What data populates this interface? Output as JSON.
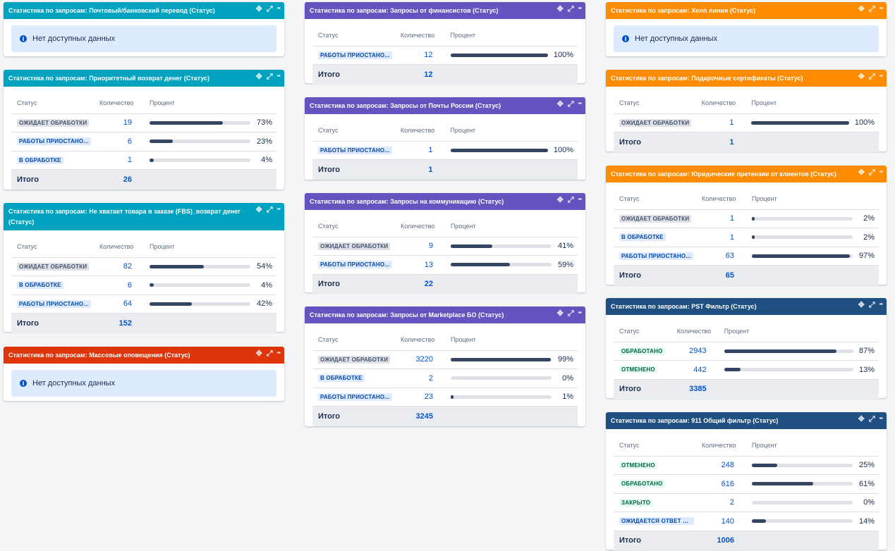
{
  "common": {
    "col_status": "Статус",
    "col_count": "Количество",
    "col_percent": "Процент",
    "total_label": "Итого",
    "no_data": "Нет доступных данных"
  },
  "gadgets": [
    {
      "id": "g1",
      "title": "Статистика по запросам: Почтовый/банковский перевод (Статус)",
      "color": "#00a3bf",
      "nodata": true
    },
    {
      "id": "g2",
      "title": "Статистика по запросам: Приоритетный возврат денег (Статус)",
      "color": "#00a3bf",
      "rows": [
        {
          "status": "ОЖИДАЕТ ОБРАБОТКИ",
          "style": "grey",
          "count": "19",
          "pct": "73%",
          "fill": 0.73
        },
        {
          "status": "РАБОТЫ ПРИОСТАНО...",
          "style": "blue",
          "count": "6",
          "pct": "23%",
          "fill": 0.23
        },
        {
          "status": "В ОБРАБОТКЕ",
          "style": "blue",
          "count": "1",
          "pct": "4%",
          "fill": 0.04
        }
      ],
      "total": "26"
    },
    {
      "id": "g3",
      "title": "Статистика по запросам: Не хватает товара в заказе (FBS)_возврат денег (Статус)",
      "color": "#00a3bf",
      "rows": [
        {
          "status": "ОЖИДАЕТ ОБРАБОТКИ",
          "style": "grey",
          "count": "82",
          "pct": "54%",
          "fill": 0.54
        },
        {
          "status": "В ОБРАБОТКЕ",
          "style": "blue",
          "count": "6",
          "pct": "4%",
          "fill": 0.04
        },
        {
          "status": "РАБОТЫ ПРИОСТАНО...",
          "style": "blue",
          "count": "64",
          "pct": "42%",
          "fill": 0.42
        }
      ],
      "total": "152"
    },
    {
      "id": "g4",
      "title": "Статистика по запросам: Массовые оповещения (Статус)",
      "color": "#de350b",
      "nodata": true
    },
    {
      "id": "g5",
      "title": "Статистика по запросам: Запросы от финансистов (Статус)",
      "color": "#6554c0",
      "rows": [
        {
          "status": "РАБОТЫ ПРИОСТАНО...",
          "style": "blue",
          "count": "12",
          "pct": "100%",
          "fill": 1.0
        }
      ],
      "total": "12"
    },
    {
      "id": "g6",
      "title": "Статистика по запросам: Запросы от Почты России (Статус)",
      "color": "#6554c0",
      "rows": [
        {
          "status": "РАБОТЫ ПРИОСТАНО...",
          "style": "blue",
          "count": "1",
          "pct": "100%",
          "fill": 1.0
        }
      ],
      "total": "1"
    },
    {
      "id": "g7",
      "title": "Статистика по запросам: Запросы на коммуникацию (Статус)",
      "color": "#6554c0",
      "rows": [
        {
          "status": "ОЖИДАЕТ ОБРАБОТКИ",
          "style": "grey",
          "count": "9",
          "pct": "41%",
          "fill": 0.41
        },
        {
          "status": "РАБОТЫ ПРИОСТАНО...",
          "style": "blue",
          "count": "13",
          "pct": "59%",
          "fill": 0.59
        }
      ],
      "total": "22"
    },
    {
      "id": "g8",
      "title": "Статистика по запросам: Запросы от Marketplace БО (Статус)",
      "color": "#6554c0",
      "rows": [
        {
          "status": "ОЖИДАЕТ ОБРАБОТКИ",
          "style": "grey",
          "count": "3220",
          "pct": "99%",
          "fill": 0.99
        },
        {
          "status": "В ОБРАБОТКЕ",
          "style": "blue",
          "count": "2",
          "pct": "0%",
          "fill": 0.0
        },
        {
          "status": "РАБОТЫ ПРИОСТАНО...",
          "style": "blue",
          "count": "23",
          "pct": "1%",
          "fill": 0.01
        }
      ],
      "total": "3245"
    },
    {
      "id": "g9",
      "title": "Статистика по запросам: Хелп линия (Статус)",
      "color": "#ff8b00",
      "nodata": true
    },
    {
      "id": "g10",
      "title": "Статистика по запросам: Подарочные сертификаты (Статус)",
      "color": "#ff8b00",
      "rows": [
        {
          "status": "ОЖИДАЕТ ОБРАБОТКИ",
          "style": "grey",
          "count": "1",
          "pct": "100%",
          "fill": 1.0
        }
      ],
      "total": "1"
    },
    {
      "id": "g11",
      "title": "Статистика по запросам: Юридические претензии от клиентов (Статус)",
      "color": "#ff8b00",
      "rows": [
        {
          "status": "ОЖИДАЕТ ОБРАБОТКИ",
          "style": "grey",
          "count": "1",
          "pct": "2%",
          "fill": 0.02
        },
        {
          "status": "В ОБРАБОТКЕ",
          "style": "blue",
          "count": "1",
          "pct": "2%",
          "fill": 0.02
        },
        {
          "status": "РАБОТЫ ПРИОСТАНО...",
          "style": "blue",
          "count": "63",
          "pct": "97%",
          "fill": 0.97
        }
      ],
      "total": "65"
    },
    {
      "id": "g12",
      "title": "Статистика по запросам: PST Фильтр (Статус)",
      "color": "#205081",
      "rows": [
        {
          "status": "ОБРАБОТАНО",
          "style": "green",
          "count": "2943",
          "pct": "87%",
          "fill": 0.87
        },
        {
          "status": "ОТМЕНЕНО",
          "style": "green",
          "count": "442",
          "pct": "13%",
          "fill": 0.13
        }
      ],
      "total": "3385"
    },
    {
      "id": "g13",
      "title": "Статистика по запросам: 911 Общий фильтр (Статус)",
      "color": "#205081",
      "rows": [
        {
          "status": "ОТМЕНЕНО",
          "style": "green",
          "count": "248",
          "pct": "25%",
          "fill": 0.25
        },
        {
          "status": "ОБРАБОТАНО",
          "style": "green",
          "count": "616",
          "pct": "61%",
          "fill": 0.61
        },
        {
          "status": "ЗАКРЫТО",
          "style": "green",
          "count": "2",
          "pct": "0%",
          "fill": 0.0
        },
        {
          "status": "ОЖИДАЕТСЯ ОТВЕТ П...",
          "style": "blue",
          "count": "140",
          "pct": "14%",
          "fill": 0.14
        }
      ],
      "total": "1006"
    }
  ]
}
